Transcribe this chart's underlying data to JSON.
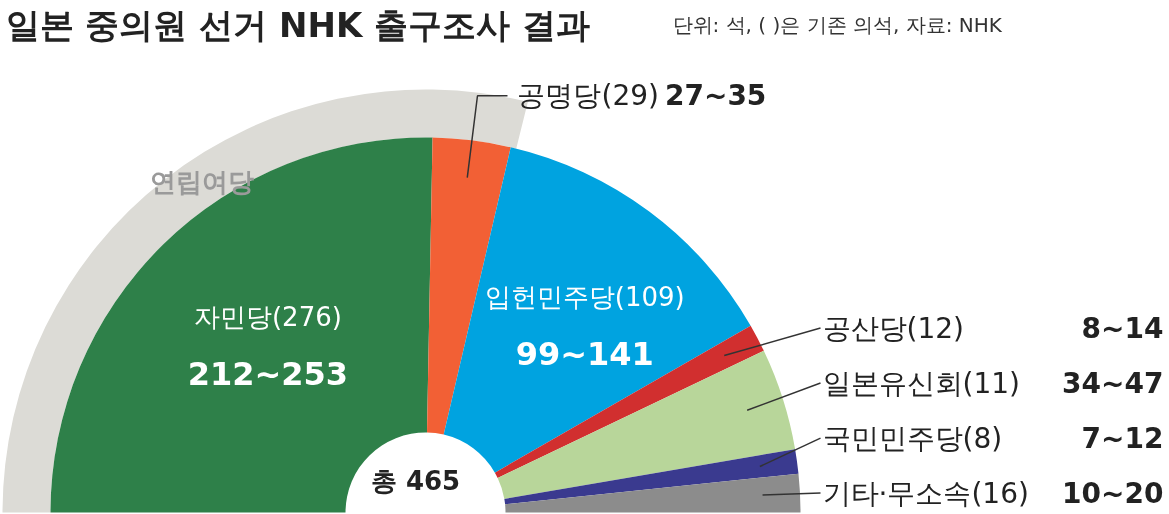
{
  "chart_data": {
    "type": "donut",
    "title": "일본 중의원 선거 NHK 출구조사 결과",
    "subtitle": "단위: 석, (     )은 기존 의석, 자료: NHK",
    "categories": [
      "자민당(276) 212~253",
      "공명당(29) 27~35",
      "입헌민주당(109) 99~141",
      "공산당(12) 8~14",
      "일본유신회(11) 34~47",
      "국민민주당(8) 7~12",
      "기타·무소속(16) 10~20"
    ],
    "values": [
      50.6,
      6.7,
      26.1,
      2.4,
      8.8,
      2.1,
      3.3
    ],
    "colors": [
      "#2e8049",
      "#f26035",
      "#00a3e0",
      "#d12f2f",
      "#b8d69a",
      "#3a3a8f",
      "#8c8c8c"
    ],
    "annotations": [
      "연립여당",
      "총 465"
    ]
  }
}
